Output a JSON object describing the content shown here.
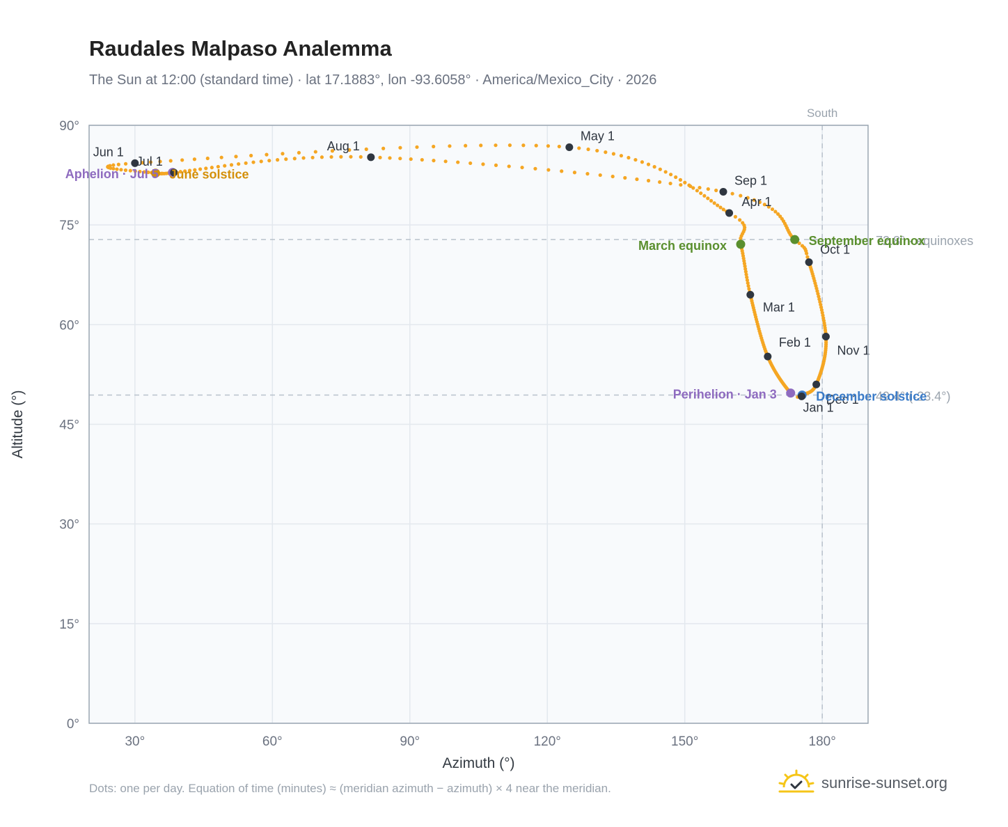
{
  "title": "Raudales Malpaso Analemma",
  "subtitle": "The Sun at 12:00 (standard time) · lat 17.1883°, lon -93.6058° · America/Mexico_City · 2026",
  "footnote": "Dots: one per day. Equation of time (minutes) ≈ (meridian azimuth − azimuth) × 4 near the meridian.",
  "brand": "sunrise-sunset.org",
  "colors": {
    "curve": "#f5a623",
    "month_dot": "#2f3640",
    "equinox": "#5a8f2e",
    "solstice_june": "#d4900a",
    "solstice_dec": "#3a7bc8",
    "apsis": "#8e6bbf",
    "refline": "#b8c2cc",
    "plot_bg": "#f8fafc"
  },
  "chart_data": {
    "type": "scatter",
    "xlabel": "Azimuth (°)",
    "ylabel": "Altitude (°)",
    "xlim": [
      20,
      190
    ],
    "ylim": [
      0,
      90
    ],
    "x_ticks": [
      30,
      60,
      90,
      120,
      150,
      180
    ],
    "x_tick_labels": [
      "30°",
      "60°",
      "90°",
      "120°",
      "150°",
      "180°"
    ],
    "y_ticks": [
      0,
      15,
      30,
      45,
      60,
      75,
      90
    ],
    "y_tick_labels": [
      "0°",
      "15°",
      "30°",
      "45°",
      "60°",
      "75°",
      "90°"
    ],
    "grid": true,
    "south_label": "South",
    "south_azimuth": 180,
    "equinox_line": {
      "altitude": 72.8,
      "label": "72.8° · equinoxes"
    },
    "december_line": {
      "altitude": 49.4,
      "label": "49.4° (-23.4°)"
    },
    "analemma_anchors": [
      {
        "doy": 1,
        "az": 175.5,
        "alt": 49.2
      },
      {
        "doy": 3,
        "az": 173.1,
        "alt": 49.7
      },
      {
        "doy": 32,
        "az": 168.1,
        "alt": 55.2
      },
      {
        "doy": 60,
        "az": 164.3,
        "alt": 64.5
      },
      {
        "doy": 79,
        "az": 162.2,
        "alt": 72.1
      },
      {
        "doy": 91,
        "az": 159.7,
        "alt": 76.8
      },
      {
        "doy": 121,
        "az": 124.8,
        "alt": 86.7
      },
      {
        "doy": 152,
        "az": 30.0,
        "alt": 84.3
      },
      {
        "doy": 172,
        "az": 34.5,
        "alt": 82.8
      },
      {
        "doy": 182,
        "az": 38.5,
        "alt": 82.9
      },
      {
        "doy": 186,
        "az": 38.2,
        "alt": 82.9
      },
      {
        "doy": 213,
        "az": 81.5,
        "alt": 85.2
      },
      {
        "doy": 244,
        "az": 158.4,
        "alt": 80.0
      },
      {
        "doy": 266,
        "az": 174.0,
        "alt": 72.8
      },
      {
        "doy": 274,
        "az": 177.1,
        "alt": 69.4
      },
      {
        "doy": 305,
        "az": 180.8,
        "alt": 58.2
      },
      {
        "doy": 335,
        "az": 178.7,
        "alt": 51.0
      },
      {
        "doy": 355,
        "az": 175.6,
        "alt": 49.4
      },
      {
        "doy": 365,
        "az": 175.5,
        "alt": 49.2
      }
    ],
    "month_markers": [
      {
        "label": "Jan 1",
        "az": 175.5,
        "alt": 49.2
      },
      {
        "label": "Feb 1",
        "az": 168.1,
        "alt": 55.2
      },
      {
        "label": "Mar 1",
        "az": 164.3,
        "alt": 64.5
      },
      {
        "label": "Apr 1",
        "az": 159.7,
        "alt": 76.8
      },
      {
        "label": "May 1",
        "az": 124.8,
        "alt": 86.7
      },
      {
        "label": "Jun 1",
        "az": 30.0,
        "alt": 84.3
      },
      {
        "label": "Jul 1",
        "az": 38.5,
        "alt": 82.9
      },
      {
        "label": "Aug 1",
        "az": 81.5,
        "alt": 85.2
      },
      {
        "label": "Sep 1",
        "az": 158.4,
        "alt": 80.0
      },
      {
        "label": "Oct 1",
        "az": 177.1,
        "alt": 69.4
      },
      {
        "label": "Nov 1",
        "az": 180.8,
        "alt": 58.2
      },
      {
        "label": "Dec 1",
        "az": 178.7,
        "alt": 51.0
      }
    ],
    "events": [
      {
        "label": "March equinox",
        "az": 162.2,
        "alt": 72.1,
        "kind": "equinox"
      },
      {
        "label": "September equinox",
        "az": 174.0,
        "alt": 72.8,
        "kind": "equinox"
      },
      {
        "label": "June solstice",
        "az": 34.5,
        "alt": 82.8,
        "kind": "solstice_june"
      },
      {
        "label": "December solstice",
        "az": 175.6,
        "alt": 49.4,
        "kind": "solstice_dec"
      },
      {
        "label": "Perihelion · Jan 3",
        "az": 173.1,
        "alt": 49.7,
        "kind": "apsis"
      },
      {
        "label": "Aphelion · Jul 5",
        "az": 38.2,
        "alt": 82.9,
        "kind": "apsis"
      }
    ]
  }
}
